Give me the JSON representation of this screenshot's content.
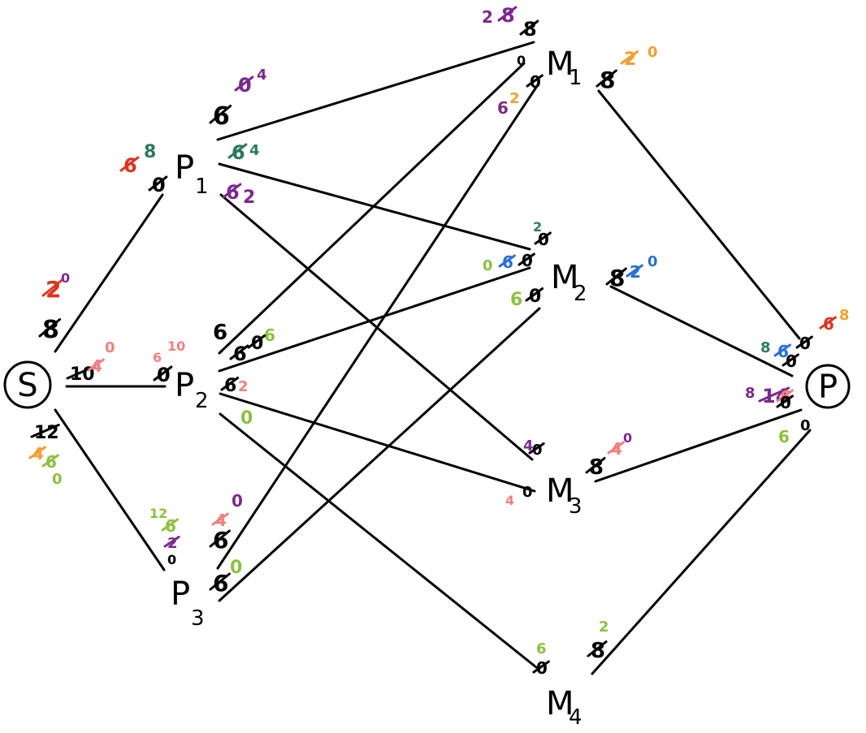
{
  "colors": {
    "ink": "#000000",
    "red": "#d9361f",
    "green": "#2a7a5a",
    "purple": "#7a2a8c",
    "orange": "#f0a030",
    "blue": "#2a70d0",
    "pink": "#f08080",
    "lime": "#8cc040"
  },
  "nodes": {
    "S": {
      "main": "S"
    },
    "P": {
      "main": "P"
    },
    "P1": {
      "main": "P",
      "sub": "1"
    },
    "P2": {
      "main": "P",
      "sub": "2"
    },
    "P3": {
      "main": "P",
      "sub": "3"
    },
    "M1": {
      "main": "M",
      "sub": "1"
    },
    "M2": {
      "main": "M",
      "sub": "2"
    },
    "M3": {
      "main": "M",
      "sub": "3"
    },
    "M4": {
      "main": "M",
      "sub": "4"
    }
  },
  "edges": [
    {
      "from": "S",
      "to": "P1"
    },
    {
      "from": "S",
      "to": "P2"
    },
    {
      "from": "S",
      "to": "P3"
    },
    {
      "from": "P1",
      "to": "M1"
    },
    {
      "from": "P1",
      "to": "M2"
    },
    {
      "from": "P1",
      "to": "M3"
    },
    {
      "from": "P2",
      "to": "M1"
    },
    {
      "from": "P2",
      "to": "M2"
    },
    {
      "from": "P2",
      "to": "M3"
    },
    {
      "from": "P2",
      "to": "M4"
    },
    {
      "from": "P3",
      "to": "M1"
    },
    {
      "from": "P3",
      "to": "M2"
    },
    {
      "from": "M1",
      "to": "P"
    },
    {
      "from": "M2",
      "to": "P"
    },
    {
      "from": "M3",
      "to": "P"
    },
    {
      "from": "M4",
      "to": "P"
    }
  ],
  "annotations": [
    {
      "text": "2",
      "color": "purple",
      "struck": false
    },
    {
      "text": "8",
      "color": "purple",
      "struck": true
    },
    {
      "text": "8",
      "color": "ink",
      "struck": true
    },
    {
      "text": "0",
      "color": "ink",
      "struck": false
    },
    {
      "text": "6",
      "color": "purple",
      "struck": false
    },
    {
      "text": "2",
      "color": "orange",
      "struck": false
    },
    {
      "text": "0",
      "color": "ink",
      "struck": true
    },
    {
      "text": "8",
      "color": "ink",
      "struck": true
    },
    {
      "text": "2",
      "color": "orange",
      "struck": true
    },
    {
      "text": "0",
      "color": "orange",
      "struck": false
    },
    {
      "text": "6",
      "color": "ink",
      "struck": true
    },
    {
      "text": "0",
      "color": "purple",
      "struck": true
    },
    {
      "text": "4",
      "color": "purple",
      "struck": false
    },
    {
      "text": "6",
      "color": "red",
      "struck": true
    },
    {
      "text": "8",
      "color": "green",
      "struck": false
    },
    {
      "text": "0",
      "color": "ink",
      "struck": true
    },
    {
      "text": "6",
      "color": "green",
      "struck": true
    },
    {
      "text": "4",
      "color": "green",
      "struck": false
    },
    {
      "text": "6",
      "color": "purple",
      "struck": true
    },
    {
      "text": "2",
      "color": "purple",
      "struck": false
    },
    {
      "text": "2",
      "color": "green",
      "struck": false
    },
    {
      "text": "0",
      "color": "ink",
      "struck": true
    },
    {
      "text": "0",
      "color": "lime",
      "struck": false
    },
    {
      "text": "6",
      "color": "blue",
      "struck": true
    },
    {
      "text": "0",
      "color": "ink",
      "struck": true
    },
    {
      "text": "8",
      "color": "ink",
      "struck": true
    },
    {
      "text": "2",
      "color": "blue",
      "struck": true
    },
    {
      "text": "0",
      "color": "blue",
      "struck": false
    },
    {
      "text": "6",
      "color": "lime",
      "struck": false
    },
    {
      "text": "0",
      "color": "ink",
      "struck": true
    },
    {
      "text": "2",
      "color": "red",
      "struck": true
    },
    {
      "text": "0",
      "color": "purple",
      "struck": false
    },
    {
      "text": "8",
      "color": "ink",
      "struck": true
    },
    {
      "text": "10",
      "color": "ink",
      "struck": true
    },
    {
      "text": "4",
      "color": "pink",
      "struck": true
    },
    {
      "text": "0",
      "color": "pink",
      "struck": false
    },
    {
      "text": "6",
      "color": "pink",
      "struck": false
    },
    {
      "text": "10",
      "color": "pink",
      "struck": false
    },
    {
      "text": "0",
      "color": "ink",
      "struck": true
    },
    {
      "text": "12",
      "color": "ink",
      "struck": true
    },
    {
      "text": "4",
      "color": "orange",
      "struck": true
    },
    {
      "text": "6",
      "color": "lime",
      "struck": true
    },
    {
      "text": "0",
      "color": "lime",
      "struck": false
    },
    {
      "text": "6",
      "color": "ink",
      "struck": false
    },
    {
      "text": "6",
      "color": "ink",
      "struck": true
    },
    {
      "text": "6",
      "color": "lime",
      "struck": false
    },
    {
      "text": "0",
      "color": "ink",
      "struck": true
    },
    {
      "text": "2",
      "color": "pink",
      "struck": false
    },
    {
      "text": "6",
      "color": "ink",
      "struck": true
    },
    {
      "text": "0",
      "color": "lime",
      "struck": false
    },
    {
      "text": "12",
      "color": "lime",
      "struck": false
    },
    {
      "text": "6",
      "color": "lime",
      "struck": true
    },
    {
      "text": "2",
      "color": "purple",
      "struck": true
    },
    {
      "text": "0",
      "color": "ink",
      "struck": false
    },
    {
      "text": "4",
      "color": "pink",
      "struck": true
    },
    {
      "text": "0",
      "color": "purple",
      "struck": false
    },
    {
      "text": "6",
      "color": "ink",
      "struck": true
    },
    {
      "text": "6",
      "color": "ink",
      "struck": true
    },
    {
      "text": "0",
      "color": "lime",
      "struck": false
    },
    {
      "text": "4",
      "color": "purple",
      "struck": false
    },
    {
      "text": "0",
      "color": "ink",
      "struck": true
    },
    {
      "text": "4",
      "color": "pink",
      "struck": false
    },
    {
      "text": "0",
      "color": "ink",
      "struck": false
    },
    {
      "text": "8",
      "color": "ink",
      "struck": true
    },
    {
      "text": "4",
      "color": "pink",
      "struck": true
    },
    {
      "text": "0",
      "color": "purple",
      "struck": false
    },
    {
      "text": "6",
      "color": "lime",
      "struck": false
    },
    {
      "text": "0",
      "color": "ink",
      "struck": true
    },
    {
      "text": "8",
      "color": "ink",
      "struck": true
    },
    {
      "text": "2",
      "color": "lime",
      "struck": false
    },
    {
      "text": "0",
      "color": "ink",
      "struck": true
    },
    {
      "text": "6",
      "color": "red",
      "struck": true
    },
    {
      "text": "8",
      "color": "orange",
      "struck": false
    },
    {
      "text": "8",
      "color": "green",
      "struck": false
    },
    {
      "text": "6",
      "color": "blue",
      "struck": true
    },
    {
      "text": "0",
      "color": "ink",
      "struck": true
    },
    {
      "text": "8",
      "color": "purple",
      "struck": false
    },
    {
      "text": "14",
      "color": "purple",
      "struck": true
    },
    {
      "text": "6",
      "color": "pink",
      "struck": true
    },
    {
      "text": "0",
      "color": "ink",
      "struck": true
    },
    {
      "text": "6",
      "color": "lime",
      "struck": false
    },
    {
      "text": "0",
      "color": "ink",
      "struck": false
    }
  ]
}
